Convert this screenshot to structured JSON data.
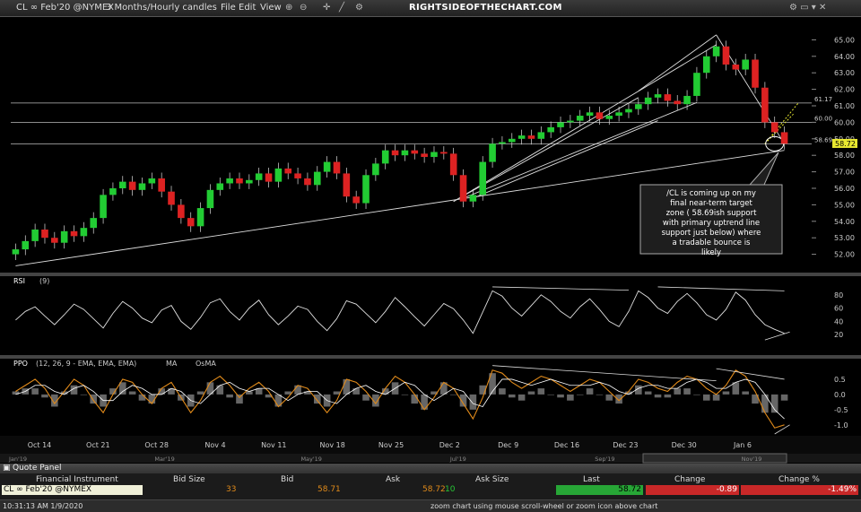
{
  "toolbar": {
    "symbol": "CL ∞ Feb'20 @NYMEX",
    "period": "3 Months/Hourly candles",
    "menu": [
      "File",
      "Edit",
      "View"
    ],
    "brand": "RIGHTSIDEOFTHECHART.COM"
  },
  "annotation": "/CL is coming up on my final near-term target zone ( 58.69ish support with primary uptrend line support just below) where a tradable bounce is likely",
  "current_price_label": "58.72",
  "chart_data": [
    {
      "type": "candlestick",
      "title": "CL ∞ Feb'20 @NYMEX",
      "x_labels": [
        "Oct 14",
        "Oct 21",
        "Oct 28",
        "Nov 4",
        "Nov 11",
        "Nov 18",
        "Nov 25",
        "Dec 2",
        "Dec 9",
        "Dec 16",
        "Dec 23",
        "Dec 30",
        "Jan 6"
      ],
      "overview_labels": [
        "Jan'19",
        "Mar'19",
        "May'19",
        "Jul'19",
        "Sep'19",
        "Nov'19"
      ],
      "ylim": [
        51.0,
        66.0
      ],
      "y_ticks": [
        52.0,
        53.0,
        54.0,
        55.0,
        56.0,
        57.0,
        58.0,
        59.0,
        60.0,
        61.0,
        62.0,
        63.0,
        64.0,
        65.0
      ],
      "levels": [
        {
          "value": 61.17,
          "label": "61.17"
        },
        {
          "value": 60.0,
          "label": "60.00"
        },
        {
          "value": 58.69,
          "label": "58.69"
        }
      ],
      "last_price": 58.72,
      "closes": [
        52.3,
        52.8,
        53.5,
        53.0,
        52.7,
        53.4,
        53.1,
        53.6,
        54.2,
        55.6,
        56.0,
        56.4,
        55.9,
        56.3,
        56.6,
        55.8,
        55.0,
        54.2,
        53.7,
        54.8,
        55.9,
        56.3,
        56.6,
        56.3,
        56.5,
        56.9,
        56.4,
        57.2,
        56.9,
        56.6,
        56.2,
        57.0,
        57.6,
        56.9,
        55.5,
        55.1,
        56.8,
        57.5,
        58.3,
        58.0,
        58.3,
        58.1,
        57.9,
        58.2,
        58.1,
        56.8,
        55.2,
        55.6,
        57.6,
        58.7,
        58.8,
        59.0,
        59.2,
        59.0,
        59.4,
        59.7,
        60.0,
        60.1,
        60.4,
        60.6,
        60.2,
        60.4,
        60.6,
        60.8,
        61.1,
        61.5,
        61.7,
        61.3,
        61.1,
        61.6,
        63.0,
        64.0,
        64.6,
        63.5,
        63.2,
        63.8,
        62.1,
        60.0,
        59.4,
        58.7
      ],
      "series": [
        {
          "name": "CL ∞ Feb'20 @NYMEX",
          "values": [
            52.3,
            52.8,
            53.5,
            53.0,
            52.7,
            53.4,
            53.1,
            53.6,
            54.2,
            55.6,
            56.0,
            56.4,
            55.9,
            56.3,
            56.6,
            55.8,
            55.0,
            54.2,
            53.7,
            54.8,
            55.9,
            56.3,
            56.6,
            56.3,
            56.5,
            56.9,
            56.4,
            57.2,
            56.9,
            56.6,
            56.2,
            57.0,
            57.6,
            56.9,
            55.5,
            55.1,
            56.8,
            57.5,
            58.3,
            58.0,
            58.3,
            58.1,
            57.9,
            58.2,
            58.1,
            56.8,
            55.2,
            55.6,
            57.6,
            58.7,
            58.8,
            59.0,
            59.2,
            59.0,
            59.4,
            59.7,
            60.0,
            60.1,
            60.4,
            60.6,
            60.2,
            60.4,
            60.6,
            60.8,
            61.1,
            61.5,
            61.7,
            61.3,
            61.1,
            61.6,
            63.0,
            64.0,
            64.6,
            63.5,
            63.2,
            63.8,
            62.1,
            60.0,
            59.4,
            58.7
          ]
        }
      ]
    },
    {
      "type": "line",
      "title": "RSI",
      "params": "(9)",
      "ylim": [
        0,
        100
      ],
      "y_ticks": [
        20,
        40,
        60,
        80
      ],
      "values": [
        42,
        55,
        62,
        48,
        35,
        50,
        66,
        58,
        44,
        30,
        52,
        70,
        60,
        45,
        38,
        57,
        64,
        40,
        28,
        46,
        68,
        74,
        55,
        42,
        60,
        72,
        50,
        35,
        48,
        63,
        58,
        40,
        26,
        44,
        71,
        66,
        52,
        38,
        55,
        76,
        62,
        47,
        33,
        50,
        67,
        59,
        42,
        22,
        54,
        86,
        78,
        60,
        48,
        64,
        80,
        70,
        55,
        45,
        62,
        74,
        58,
        40,
        32,
        55,
        86,
        76,
        60,
        52,
        70,
        82,
        68,
        50,
        42,
        58,
        84,
        72,
        50,
        35,
        28,
        22
      ],
      "series": [
        {
          "name": "RSI",
          "values": [
            42,
            55,
            62,
            48,
            35,
            50,
            66,
            58,
            44,
            30,
            52,
            70,
            60,
            45,
            38,
            57,
            64,
            40,
            28,
            46,
            68,
            74,
            55,
            42,
            60,
            72,
            50,
            35,
            48,
            63,
            58,
            40,
            26,
            44,
            71,
            66,
            52,
            38,
            55,
            76,
            62,
            47,
            33,
            50,
            67,
            59,
            42,
            22,
            54,
            86,
            78,
            60,
            48,
            64,
            80,
            70,
            55,
            45,
            62,
            74,
            58,
            40,
            32,
            55,
            86,
            76,
            60,
            52,
            70,
            82,
            68,
            50,
            42,
            58,
            84,
            72,
            50,
            35,
            28,
            22
          ]
        }
      ]
    },
    {
      "type": "line",
      "title": "PPO",
      "params": "(12, 26, 9 - EMA, EMA, EMA)",
      "legend": [
        "MA",
        "OsMA"
      ],
      "ylim": [
        -1.3,
        1.0
      ],
      "y_ticks": [
        -1.0,
        -0.5,
        0.0,
        0.5
      ],
      "values": [
        0.1,
        0.3,
        0.5,
        0.2,
        -0.3,
        0.1,
        0.5,
        0.3,
        -0.2,
        -0.6,
        0.0,
        0.5,
        0.4,
        0.0,
        -0.3,
        0.2,
        0.4,
        -0.1,
        -0.6,
        -0.2,
        0.4,
        0.6,
        0.3,
        -0.1,
        0.2,
        0.4,
        0.1,
        -0.4,
        -0.1,
        0.3,
        0.2,
        -0.2,
        -0.6,
        -0.2,
        0.5,
        0.4,
        0.1,
        -0.3,
        0.2,
        0.6,
        0.4,
        0.0,
        -0.5,
        -0.1,
        0.4,
        0.2,
        -0.3,
        -0.8,
        -0.1,
        0.8,
        0.7,
        0.4,
        0.2,
        0.4,
        0.6,
        0.5,
        0.3,
        0.1,
        0.3,
        0.5,
        0.4,
        0.1,
        -0.2,
        0.1,
        0.5,
        0.4,
        0.2,
        0.1,
        0.4,
        0.6,
        0.5,
        0.2,
        0.0,
        0.3,
        0.8,
        0.6,
        0.1,
        -0.6,
        -1.1,
        -1.0
      ],
      "series": [
        {
          "name": "PPO",
          "values": [
            0.1,
            0.3,
            0.5,
            0.2,
            -0.3,
            0.1,
            0.5,
            0.3,
            -0.2,
            -0.6,
            0.0,
            0.5,
            0.4,
            0.0,
            -0.3,
            0.2,
            0.4,
            -0.1,
            -0.6,
            -0.2,
            0.4,
            0.6,
            0.3,
            -0.1,
            0.2,
            0.4,
            0.1,
            -0.4,
            -0.1,
            0.3,
            0.2,
            -0.2,
            -0.6,
            -0.2,
            0.5,
            0.4,
            0.1,
            -0.3,
            0.2,
            0.6,
            0.4,
            0.0,
            -0.5,
            -0.1,
            0.4,
            0.2,
            -0.3,
            -0.8,
            -0.1,
            0.8,
            0.7,
            0.4,
            0.2,
            0.4,
            0.6,
            0.5,
            0.3,
            0.1,
            0.3,
            0.5,
            0.4,
            0.1,
            -0.2,
            0.1,
            0.5,
            0.4,
            0.2,
            0.1,
            0.4,
            0.6,
            0.5,
            0.2,
            0.0,
            0.3,
            0.8,
            0.6,
            0.1,
            -0.6,
            -1.1,
            -1.0
          ]
        },
        {
          "name": "MA",
          "values": [
            0.0,
            0.1,
            0.3,
            0.3,
            0.1,
            0.0,
            0.2,
            0.3,
            0.1,
            -0.2,
            -0.2,
            0.1,
            0.3,
            0.2,
            0.0,
            0.0,
            0.2,
            0.1,
            -0.2,
            -0.3,
            0.0,
            0.3,
            0.4,
            0.2,
            0.1,
            0.2,
            0.2,
            0.0,
            -0.2,
            0.0,
            0.1,
            0.1,
            -0.2,
            -0.3,
            0.0,
            0.2,
            0.3,
            0.1,
            0.0,
            0.2,
            0.4,
            0.3,
            0.0,
            -0.2,
            0.0,
            0.2,
            0.1,
            -0.3,
            -0.4,
            0.1,
            0.5,
            0.5,
            0.4,
            0.3,
            0.4,
            0.5,
            0.4,
            0.3,
            0.3,
            0.3,
            0.4,
            0.3,
            0.1,
            0.0,
            0.2,
            0.3,
            0.3,
            0.2,
            0.2,
            0.4,
            0.5,
            0.4,
            0.2,
            0.2,
            0.4,
            0.5,
            0.4,
            0.0,
            -0.5,
            -0.8
          ]
        }
      ]
    }
  ],
  "quote_panel": {
    "title": "Quote Panel",
    "headers": [
      "Financial Instrument",
      "Bid Size",
      "Bid",
      "Ask",
      "Ask Size",
      "Last",
      "Change",
      "Change %"
    ],
    "row": {
      "instrument": "CL ∞ Feb'20 @NYMEX",
      "bid_size": "33",
      "bid": "58.71",
      "ask": "58.72",
      "ask_size": "10",
      "last": "58.72",
      "change": "-0.89",
      "change_pct": "-1.49%"
    }
  },
  "status": {
    "time": "10:31:13 AM 1/9/2020",
    "hint": "zoom chart using mouse scroll-wheel or zoom icon above chart"
  },
  "colors": {
    "up": "#22cc33",
    "down": "#dd2222",
    "osc_line": "#e0e0e0",
    "ppo": "#e08a1a",
    "ma": "#ffffff",
    "price_tag": "#e8e830",
    "change_bg": "#c82828",
    "last_bg": "#27a636"
  }
}
